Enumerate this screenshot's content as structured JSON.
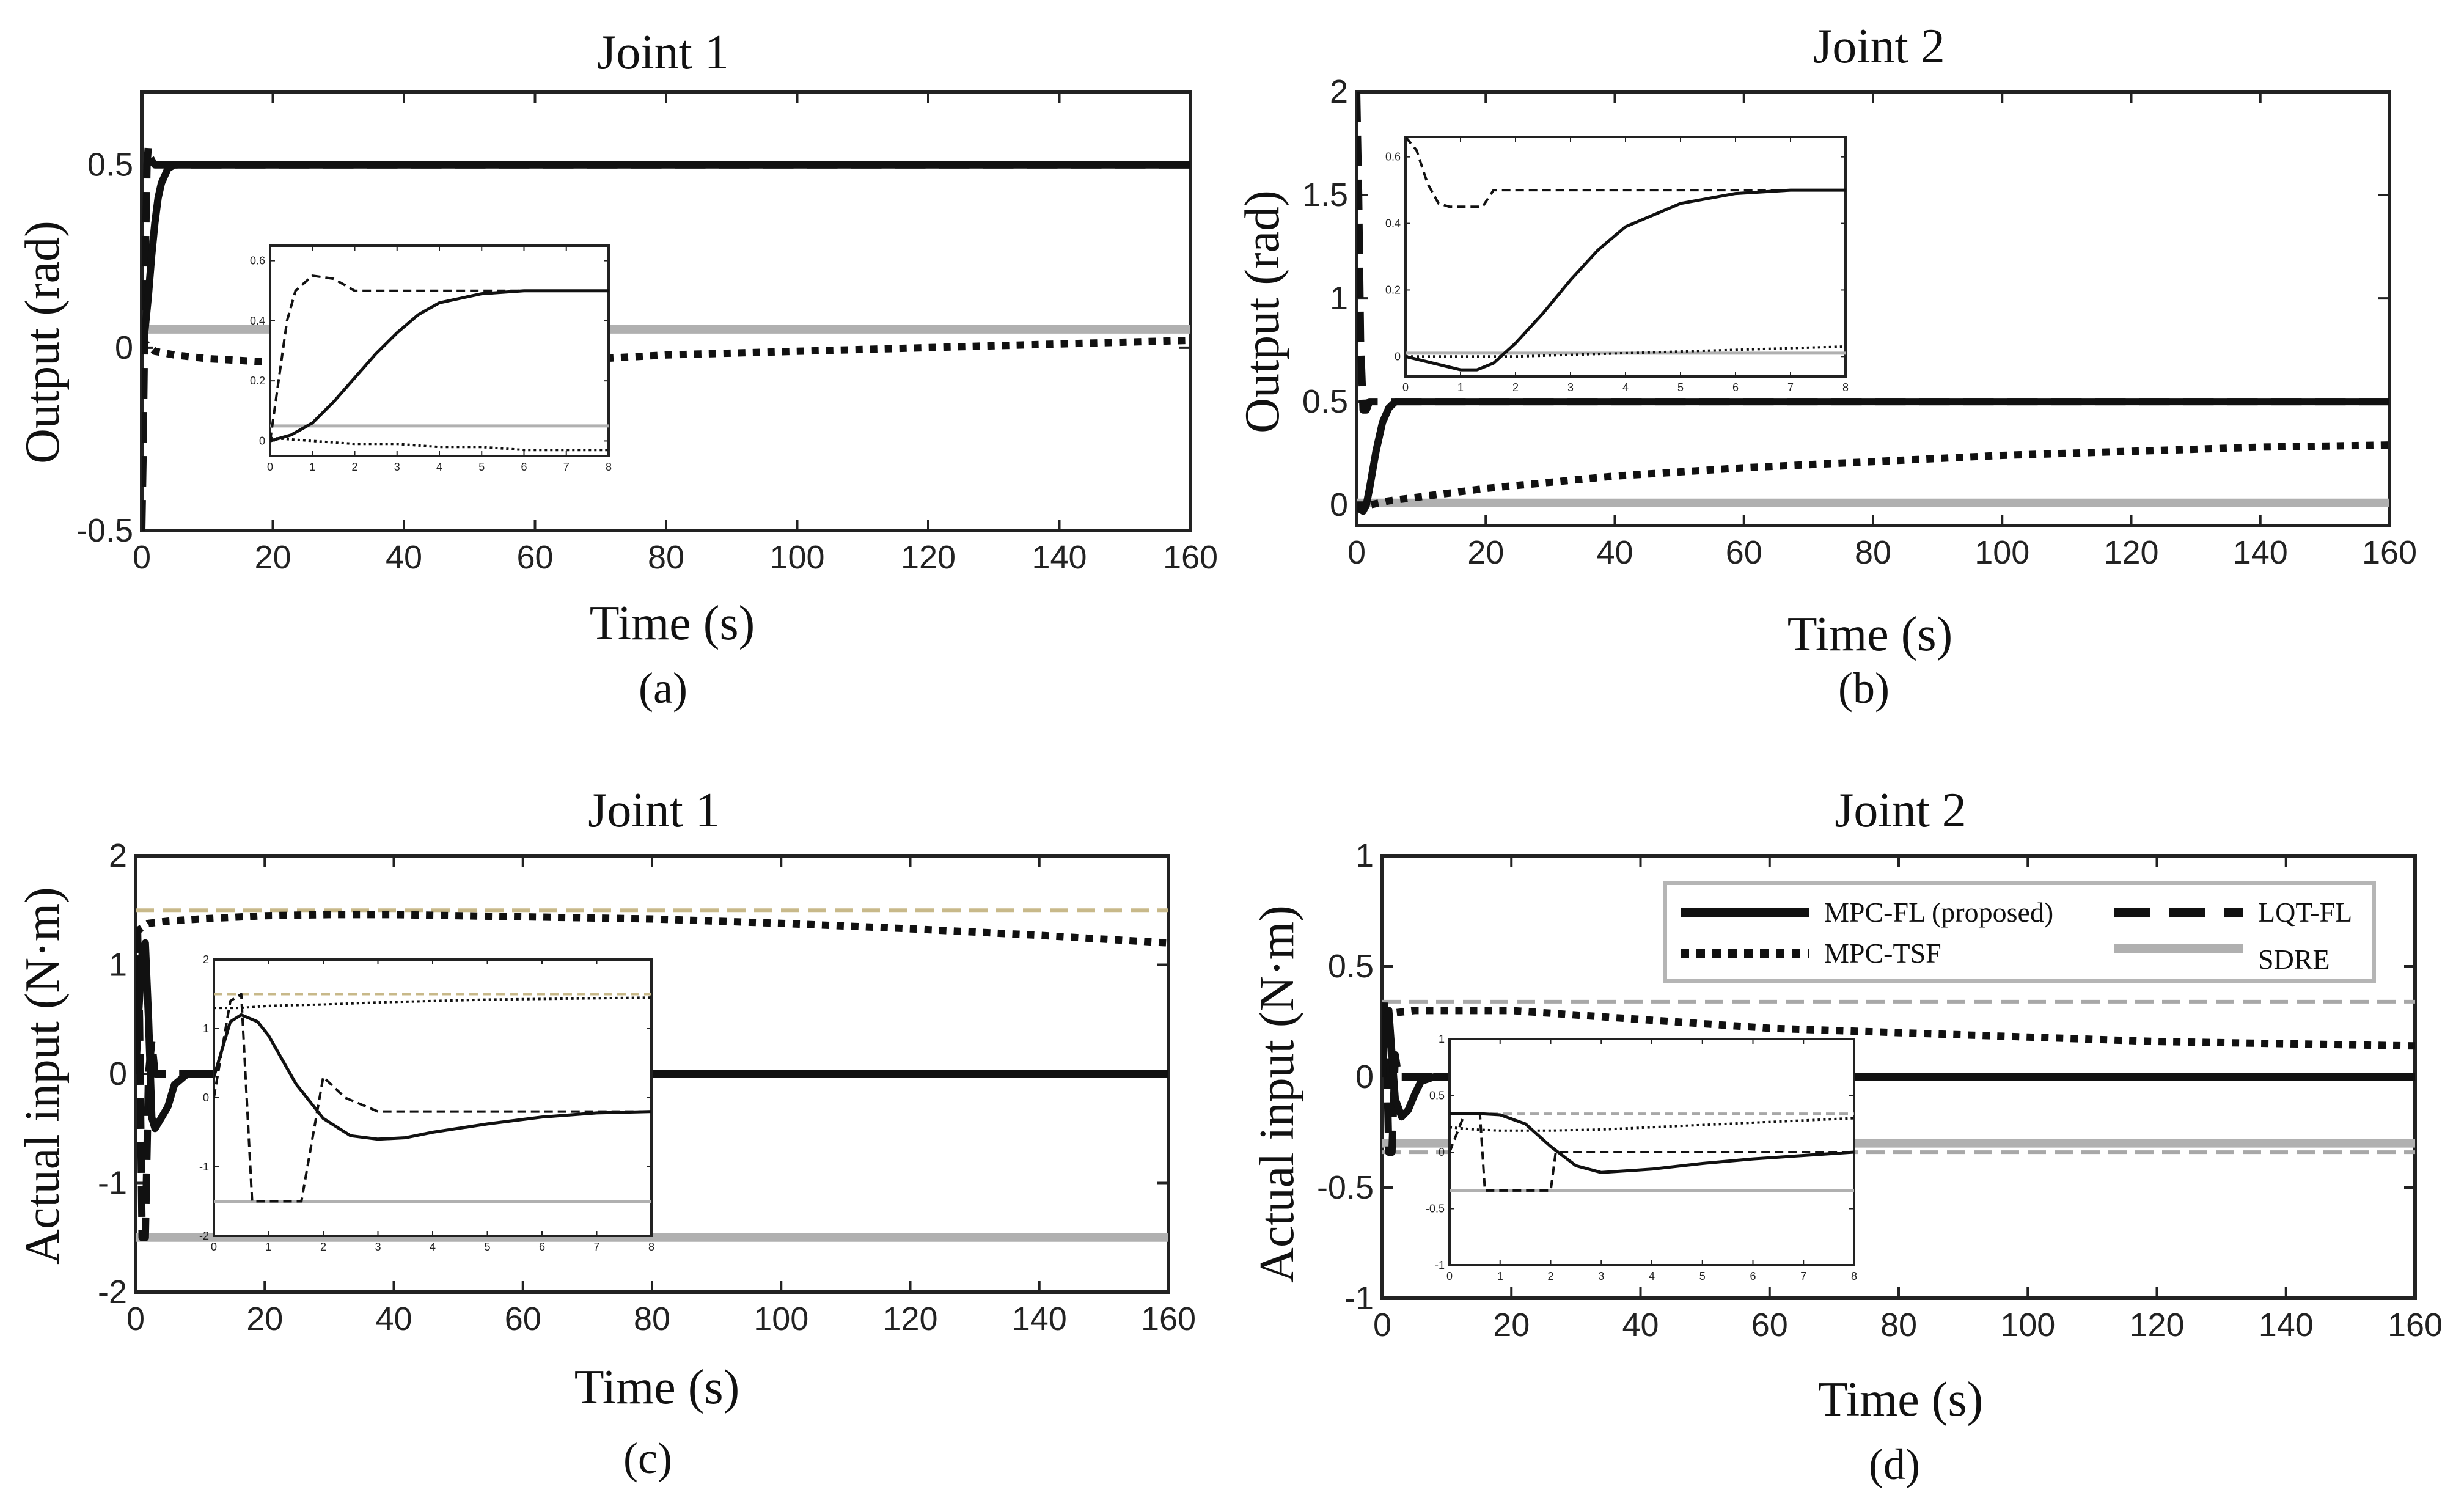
{
  "legend": {
    "entries": [
      {
        "label": "MPC-FL (proposed)",
        "style": "solid"
      },
      {
        "label": "LQT-FL",
        "style": "dashed"
      },
      {
        "label": "MPC-TSF",
        "style": "dotted"
      },
      {
        "label": "SDRE",
        "style": "gray"
      }
    ]
  },
  "colors": {
    "mpc_fl": "#111111",
    "lqt_fl": "#111111",
    "mpc_tsf": "#111111",
    "sdre": "#b0b0b0",
    "limit_line": "#c8b98a",
    "limit_line_gray": "#a8a8a8",
    "frame": "#222222"
  },
  "chart_data": [
    {
      "panel": "a",
      "caption": "(a)",
      "type": "line",
      "title": "Joint 1",
      "xlabel": "Time (s)",
      "ylabel": "Output (rad)",
      "xlim": [
        0,
        160
      ],
      "ylim": [
        -0.5,
        0.7
      ],
      "xticks": [
        0,
        20,
        40,
        60,
        80,
        100,
        120,
        140,
        160
      ],
      "yticks": [
        -0.5,
        0,
        0.5
      ],
      "series": [
        {
          "id": "mpc_fl",
          "x": [
            0,
            0.5,
            1,
            1.5,
            2,
            2.5,
            3,
            4,
            5,
            6,
            8,
            160
          ],
          "y": [
            0,
            0.05,
            0.14,
            0.25,
            0.34,
            0.41,
            0.45,
            0.49,
            0.5,
            0.5,
            0.5,
            0.5
          ]
        },
        {
          "id": "lqt_fl",
          "x": [
            0,
            0.2,
            0.4,
            0.6,
            0.8,
            1.0,
            1.3,
            1.6,
            2.0,
            3.0,
            4.0,
            160
          ],
          "y": [
            -0.5,
            -0.3,
            0.0,
            0.3,
            0.5,
            0.55,
            0.52,
            0.51,
            0.5,
            0.5,
            0.5,
            0.5
          ]
        },
        {
          "id": "mpc_tsf",
          "x": [
            0,
            2,
            5,
            10,
            20,
            30,
            40,
            60,
            80,
            100,
            120,
            140,
            160
          ],
          "y": [
            0.02,
            -0.01,
            -0.02,
            -0.03,
            -0.04,
            -0.05,
            -0.05,
            -0.04,
            -0.02,
            -0.01,
            0.0,
            0.01,
            0.02
          ]
        },
        {
          "id": "sdre",
          "x": [
            0,
            160
          ],
          "y": [
            0.05,
            0.05
          ]
        }
      ],
      "inset": {
        "xlim": [
          0,
          8
        ],
        "ylim": [
          -0.05,
          0.65
        ],
        "xticks": [
          0,
          1,
          2,
          3,
          4,
          5,
          6,
          7,
          8
        ],
        "yticks": [
          0,
          0.2,
          0.4,
          0.6
        ],
        "series": [
          {
            "id": "mpc_fl",
            "x": [
              0,
              0.5,
              1,
              1.5,
              2,
              2.5,
              3,
              3.5,
              4,
              5,
              6,
              7,
              8
            ],
            "y": [
              0,
              0.02,
              0.06,
              0.13,
              0.21,
              0.29,
              0.36,
              0.42,
              0.46,
              0.49,
              0.5,
              0.5,
              0.5
            ]
          },
          {
            "id": "lqt_fl",
            "x": [
              0,
              0.2,
              0.4,
              0.6,
              1.0,
              1.5,
              2.0,
              2.5,
              3.0,
              5.0,
              8.0
            ],
            "y": [
              0,
              0.2,
              0.4,
              0.5,
              0.55,
              0.54,
              0.5,
              0.5,
              0.5,
              0.5,
              0.5
            ]
          },
          {
            "id": "mpc_tsf",
            "x": [
              0,
              1,
              2,
              3,
              4,
              5,
              6,
              7,
              8
            ],
            "y": [
              0.01,
              0.0,
              -0.01,
              -0.01,
              -0.02,
              -0.02,
              -0.03,
              -0.03,
              -0.03
            ]
          },
          {
            "id": "sdre",
            "x": [
              0,
              8
            ],
            "y": [
              0.05,
              0.05
            ]
          }
        ]
      }
    },
    {
      "panel": "b",
      "caption": "(b)",
      "type": "line",
      "title": "Joint 2",
      "xlabel": "Time (s)",
      "ylabel": "Output (rad)",
      "xlim": [
        0,
        160
      ],
      "ylim": [
        -0.1,
        2
      ],
      "xticks": [
        0,
        20,
        40,
        60,
        80,
        100,
        120,
        140,
        160
      ],
      "yticks": [
        0,
        0.5,
        1,
        1.5,
        2
      ],
      "series": [
        {
          "id": "mpc_fl",
          "x": [
            0,
            0.5,
            1,
            1.5,
            2,
            3,
            4,
            5,
            6,
            8,
            160
          ],
          "y": [
            0,
            -0.02,
            -0.03,
            0.0,
            0.08,
            0.26,
            0.4,
            0.47,
            0.5,
            0.5,
            0.5
          ]
        },
        {
          "id": "lqt_fl",
          "x": [
            0,
            0.3,
            0.6,
            1.0,
            1.5,
            2.0,
            3.0,
            160
          ],
          "y": [
            2.0,
            1.5,
            0.8,
            0.46,
            0.46,
            0.5,
            0.5,
            0.5
          ]
        },
        {
          "id": "mpc_tsf",
          "x": [
            0,
            2,
            5,
            10,
            20,
            40,
            60,
            80,
            100,
            120,
            140,
            160
          ],
          "y": [
            0.0,
            0.0,
            0.02,
            0.04,
            0.08,
            0.14,
            0.18,
            0.21,
            0.24,
            0.26,
            0.28,
            0.29
          ]
        },
        {
          "id": "sdre",
          "x": [
            0,
            160
          ],
          "y": [
            0.01,
            0.01
          ]
        }
      ],
      "inset": {
        "xlim": [
          0,
          8
        ],
        "ylim": [
          -0.06,
          0.66
        ],
        "xticks": [
          0,
          1,
          2,
          3,
          4,
          5,
          6,
          7,
          8
        ],
        "yticks": [
          0,
          0.2,
          0.4,
          0.6
        ],
        "series": [
          {
            "id": "mpc_fl",
            "x": [
              0,
              0.5,
              1,
              1.3,
              1.6,
              2,
              2.5,
              3,
              3.5,
              4,
              5,
              6,
              7,
              8
            ],
            "y": [
              0,
              -0.02,
              -0.04,
              -0.04,
              -0.02,
              0.04,
              0.13,
              0.23,
              0.32,
              0.39,
              0.46,
              0.49,
              0.5,
              0.5
            ]
          },
          {
            "id": "lqt_fl",
            "x": [
              0,
              0.2,
              0.4,
              0.6,
              0.8,
              1.0,
              1.4,
              1.6,
              2.0,
              8.0
            ],
            "y": [
              0.66,
              0.62,
              0.52,
              0.46,
              0.45,
              0.45,
              0.45,
              0.5,
              0.5,
              0.5
            ]
          },
          {
            "id": "mpc_tsf",
            "x": [
              0,
              2,
              4,
              6,
              8
            ],
            "y": [
              0.0,
              0.0,
              0.01,
              0.02,
              0.03
            ]
          },
          {
            "id": "sdre",
            "x": [
              0,
              8
            ],
            "y": [
              0.01,
              0.01
            ]
          }
        ]
      }
    },
    {
      "panel": "c",
      "caption": "(c)",
      "type": "line",
      "title": "Joint 1",
      "xlabel": "Time (s)",
      "ylabel": "Actual input (N·m)",
      "xlim": [
        0,
        160
      ],
      "ylim": [
        -2,
        2
      ],
      "xticks": [
        0,
        20,
        40,
        60,
        80,
        100,
        120,
        140,
        160
      ],
      "yticks": [
        -2,
        -1,
        0,
        1,
        2
      ],
      "limits": [
        1.5,
        -1.5
      ],
      "series": [
        {
          "id": "mpc_fl",
          "x": [
            0,
            0.5,
            1,
            1.5,
            2,
            2.5,
            3,
            4,
            5,
            6,
            8,
            10,
            160
          ],
          "y": [
            0,
            0.6,
            1.1,
            1.2,
            0.5,
            -0.4,
            -0.5,
            -0.4,
            -0.3,
            -0.1,
            0.0,
            0.0,
            0.0
          ]
        },
        {
          "id": "lqt_fl",
          "x": [
            0,
            0.3,
            0.6,
            1.0,
            1.5,
            2.0,
            2.5,
            3.0,
            4.0,
            160
          ],
          "y": [
            0,
            1.3,
            0.5,
            -1.5,
            -1.5,
            0.0,
            0.3,
            0.0,
            0.0,
            0.0
          ]
        },
        {
          "id": "mpc_tsf",
          "x": [
            0,
            2,
            5,
            10,
            20,
            30,
            40,
            60,
            80,
            100,
            120,
            140,
            160
          ],
          "y": [
            1.3,
            1.38,
            1.4,
            1.42,
            1.45,
            1.46,
            1.46,
            1.44,
            1.42,
            1.38,
            1.33,
            1.27,
            1.2
          ]
        },
        {
          "id": "sdre",
          "x": [
            0,
            160
          ],
          "y": [
            -1.5,
            -1.5
          ]
        }
      ],
      "inset": {
        "xlim": [
          0,
          8
        ],
        "ylim": [
          -2,
          2
        ],
        "xticks": [
          0,
          1,
          2,
          3,
          4,
          5,
          6,
          7,
          8
        ],
        "yticks": [
          -2,
          -1,
          0,
          1,
          2
        ],
        "limits": [
          1.5,
          -1.5
        ],
        "series": [
          {
            "id": "mpc_fl",
            "x": [
              0,
              0.3,
              0.5,
              0.8,
              1.0,
              1.5,
              2.0,
              2.5,
              3.0,
              3.5,
              4.0,
              5.0,
              6.0,
              7.0,
              8.0
            ],
            "y": [
              0.3,
              1.1,
              1.2,
              1.1,
              0.9,
              0.2,
              -0.3,
              -0.55,
              -0.6,
              -0.58,
              -0.5,
              -0.38,
              -0.28,
              -0.22,
              -0.2
            ]
          },
          {
            "id": "lqt_fl",
            "x": [
              0,
              0.3,
              0.5,
              0.6,
              0.7,
              1.2,
              1.6,
              1.8,
              2.0,
              2.4,
              3.0,
              4.0,
              8.0
            ],
            "y": [
              0,
              1.4,
              1.5,
              0.0,
              -1.5,
              -1.5,
              -1.5,
              -0.6,
              0.3,
              0.0,
              -0.2,
              -0.2,
              -0.2
            ]
          },
          {
            "id": "mpc_tsf",
            "x": [
              0,
              0.5,
              1,
              2,
              3,
              4,
              5,
              6,
              7,
              8
            ],
            "y": [
              1.3,
              1.3,
              1.33,
              1.35,
              1.38,
              1.4,
              1.42,
              1.43,
              1.44,
              1.45
            ]
          },
          {
            "id": "sdre",
            "x": [
              0,
              8
            ],
            "y": [
              -1.5,
              -1.5
            ]
          }
        ]
      }
    },
    {
      "panel": "d",
      "caption": "(d)",
      "type": "line",
      "title": "Joint 2",
      "xlabel": "Time (s)",
      "ylabel": "Actual input (N·m)",
      "xlim": [
        0,
        160
      ],
      "ylim": [
        -1,
        1
      ],
      "xticks": [
        0,
        20,
        40,
        60,
        80,
        100,
        120,
        140,
        160
      ],
      "yticks": [
        -1,
        -0.5,
        0,
        0.5,
        1
      ],
      "limits": [
        0.34,
        -0.34
      ],
      "series": [
        {
          "id": "mpc_fl",
          "x": [
            0,
            0.5,
            1,
            1.5,
            2,
            3,
            4,
            5,
            6,
            8,
            160
          ],
          "y": [
            0,
            0.25,
            0.3,
            0.1,
            -0.1,
            -0.18,
            -0.15,
            -0.08,
            -0.02,
            0.0,
            0.0
          ]
        },
        {
          "id": "lqt_fl",
          "x": [
            0,
            0.3,
            0.6,
            1.0,
            1.5,
            2.0,
            2.5,
            3.0,
            160
          ],
          "y": [
            0,
            0.34,
            0.2,
            -0.34,
            -0.34,
            0.1,
            0.0,
            0.0,
            0.0
          ]
        },
        {
          "id": "mpc_tsf",
          "x": [
            0,
            2,
            5,
            10,
            20,
            40,
            60,
            80,
            100,
            120,
            140,
            160
          ],
          "y": [
            0.28,
            0.29,
            0.3,
            0.3,
            0.3,
            0.26,
            0.22,
            0.2,
            0.18,
            0.16,
            0.15,
            0.14
          ]
        },
        {
          "id": "sdre",
          "x": [
            0,
            160
          ],
          "y": [
            -0.3,
            -0.3
          ]
        }
      ],
      "inset": {
        "xlim": [
          0,
          8
        ],
        "ylim": [
          -1,
          1
        ],
        "xticks": [
          0,
          1,
          2,
          3,
          4,
          5,
          6,
          7,
          8
        ],
        "yticks": [
          -1,
          -0.5,
          0,
          0.5,
          1
        ],
        "limits": [
          0.34,
          -0.34
        ],
        "series": [
          {
            "id": "mpc_fl",
            "x": [
              0,
              0.3,
              0.6,
              1.0,
              1.5,
              2.0,
              2.5,
              3.0,
              4.0,
              5.0,
              6.0,
              7.0,
              8.0
            ],
            "y": [
              0.34,
              0.34,
              0.34,
              0.33,
              0.25,
              0.05,
              -0.12,
              -0.18,
              -0.15,
              -0.1,
              -0.06,
              -0.03,
              0.0
            ]
          },
          {
            "id": "lqt_fl",
            "x": [
              0,
              0.3,
              0.6,
              0.7,
              0.8,
              2.0,
              2.1,
              8.0
            ],
            "y": [
              0,
              0.34,
              0.34,
              -0.34,
              -0.34,
              -0.34,
              0.0,
              0.0
            ]
          },
          {
            "id": "mpc_tsf",
            "x": [
              0,
              0.5,
              1,
              2,
              3,
              4,
              5,
              6,
              7,
              8
            ],
            "y": [
              0.22,
              0.2,
              0.19,
              0.19,
              0.2,
              0.22,
              0.24,
              0.26,
              0.28,
              0.3
            ]
          },
          {
            "id": "sdre",
            "x": [
              0,
              8
            ],
            "y": [
              -0.34,
              -0.34
            ]
          }
        ]
      }
    }
  ]
}
